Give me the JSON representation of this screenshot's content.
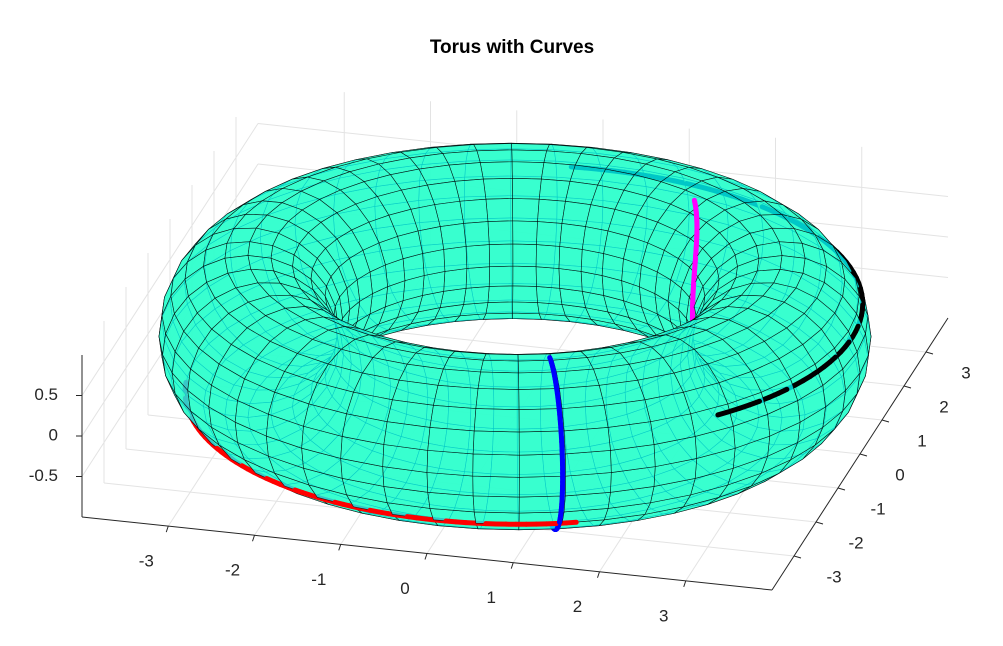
{
  "chart_data": {
    "type": "surface3d",
    "title": "Torus with Curves",
    "surface": {
      "major_radius": 3,
      "minor_radius": 1,
      "face_color": "#00ffff",
      "back_face_color": "#ffff00",
      "edge_color": "#000000"
    },
    "xlim": [
      -4,
      4
    ],
    "ylim": [
      -4,
      4
    ],
    "zlim": [
      -1,
      1
    ],
    "xticks": [
      -3,
      -2,
      -1,
      0,
      1,
      2,
      3
    ],
    "yticks": [
      -3,
      -2,
      -1,
      0,
      1,
      2,
      3
    ],
    "zticks": [
      -0.5,
      0,
      0.5
    ],
    "grid": true,
    "curves": [
      {
        "color": "#ff0000",
        "u": [
          190,
          295
        ],
        "v": [
          -45,
          -45
        ]
      },
      {
        "color": "#000000",
        "u": [
          -40,
          95
        ],
        "v": [
          25,
          25
        ]
      },
      {
        "color": "#0000ff",
        "u": [
          292,
          292
        ],
        "v": [
          95,
          -85
        ]
      },
      {
        "color": "#ff00ff",
        "u": [
          55,
          20
        ],
        "v": [
          110,
          175
        ]
      }
    ]
  }
}
